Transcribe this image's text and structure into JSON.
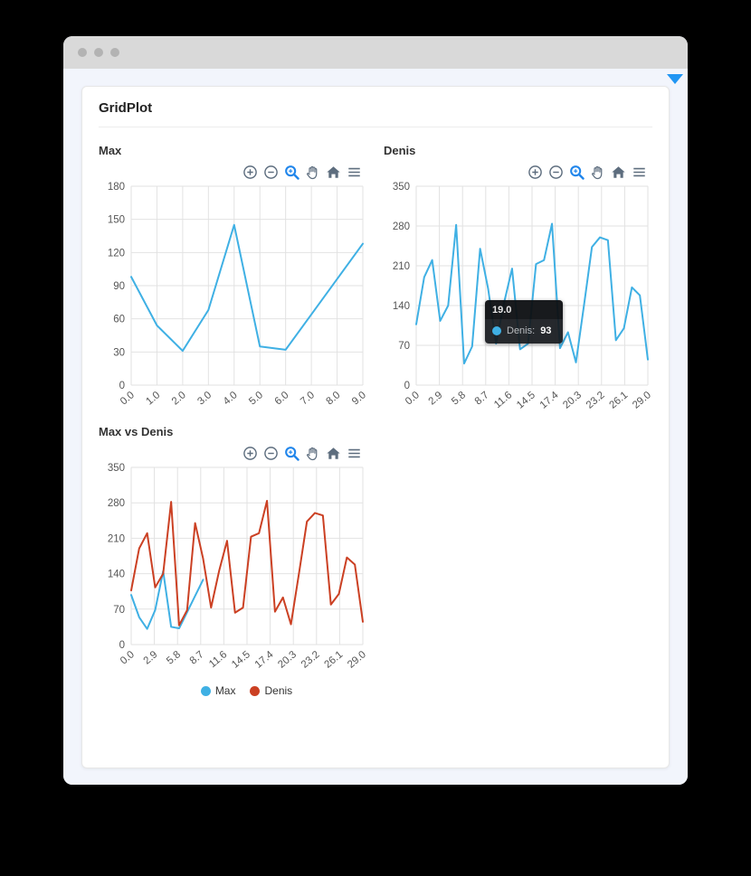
{
  "window": {
    "traffic_dots_count": 3
  },
  "card": {
    "title": "GridPlot"
  },
  "colors": {
    "max_line": "#3fb0e4",
    "denis_line": "#cb4023",
    "toolbar_icon": "#5d6d7e",
    "toolbar_active": "#2186eb",
    "caret": "#2196f3",
    "grid_line": "#e2e2e2",
    "tick_text": "#555555",
    "tooltip_bg": "#16191d"
  },
  "toolbar": {
    "buttons": [
      {
        "name": "zoom-in",
        "active": false
      },
      {
        "name": "zoom-out",
        "active": false
      },
      {
        "name": "box-zoom",
        "active": true
      },
      {
        "name": "pan",
        "active": false
      },
      {
        "name": "reset-home",
        "active": false
      },
      {
        "name": "menu",
        "active": false
      }
    ]
  },
  "tooltip": {
    "header": "19.0",
    "series_label": "Denis:",
    "value": "93"
  },
  "legend": {
    "items": [
      {
        "label": "Max",
        "color": "#3fb0e4"
      },
      {
        "label": "Denis",
        "color": "#cb4023"
      }
    ]
  },
  "chart_data": [
    {
      "type": "line",
      "title": "Max",
      "x": [
        0,
        1,
        2,
        3,
        4,
        5,
        6,
        7,
        8,
        9
      ],
      "values": [
        98,
        54,
        31,
        68,
        145,
        35,
        32,
        64,
        96,
        128
      ],
      "x_tick_labels": [
        "0.0",
        "1.0",
        "2.0",
        "3.0",
        "4.0",
        "5.0",
        "6.0",
        "7.0",
        "8.0",
        "9.0"
      ],
      "x_tick_values": [
        0,
        1,
        2,
        3,
        4,
        5,
        6,
        7,
        8,
        9
      ],
      "y_ticks": [
        0,
        30,
        60,
        90,
        120,
        150,
        180
      ],
      "xlim": [
        0,
        9
      ],
      "ylim": [
        0,
        180
      ],
      "line_color": "#3fb0e4",
      "grid": true,
      "legend_position": "none"
    },
    {
      "type": "line",
      "title": "Denis",
      "x": [
        0,
        1,
        2,
        3,
        4,
        5,
        6,
        7,
        8,
        9,
        10,
        11,
        12,
        13,
        14,
        15,
        16,
        17,
        18,
        19,
        20,
        21,
        22,
        23,
        24,
        25,
        26,
        27,
        28,
        29
      ],
      "values": [
        107,
        190,
        220,
        113,
        140,
        282,
        38,
        68,
        240,
        170,
        73,
        145,
        205,
        63,
        73,
        213,
        220,
        284,
        65,
        93,
        40,
        140,
        243,
        260,
        255,
        79,
        100,
        172,
        158,
        45
      ],
      "x_tick_labels": [
        "0.0",
        "2.9",
        "5.8",
        "8.7",
        "11.6",
        "14.5",
        "17.4",
        "20.3",
        "23.2",
        "26.1",
        "29.0"
      ],
      "x_tick_values": [
        0,
        2.9,
        5.8,
        8.7,
        11.6,
        14.5,
        17.4,
        20.3,
        23.2,
        26.1,
        29
      ],
      "y_ticks": [
        0,
        70,
        140,
        210,
        280,
        350
      ],
      "xlim": [
        0,
        29
      ],
      "ylim": [
        0,
        350
      ],
      "line_color": "#3fb0e4",
      "grid": true,
      "hover": {
        "x": 19,
        "y": 93
      },
      "legend_position": "none"
    },
    {
      "type": "line",
      "title": "Max vs Denis",
      "series": [
        {
          "name": "Max",
          "color": "#3fb0e4",
          "x": [
            0,
            1,
            2,
            3,
            4,
            5,
            6,
            7,
            8,
            9
          ],
          "values": [
            98,
            54,
            31,
            68,
            145,
            35,
            32,
            64,
            96,
            128
          ]
        },
        {
          "name": "Denis",
          "color": "#cb4023",
          "x": [
            0,
            1,
            2,
            3,
            4,
            5,
            6,
            7,
            8,
            9,
            10,
            11,
            12,
            13,
            14,
            15,
            16,
            17,
            18,
            19,
            20,
            21,
            22,
            23,
            24,
            25,
            26,
            27,
            28,
            29
          ],
          "values": [
            107,
            190,
            220,
            113,
            140,
            282,
            38,
            68,
            240,
            170,
            73,
            145,
            205,
            63,
            73,
            213,
            220,
            284,
            65,
            93,
            40,
            140,
            243,
            260,
            255,
            79,
            100,
            172,
            158,
            45
          ]
        }
      ],
      "x_tick_labels": [
        "0.0",
        "2.9",
        "5.8",
        "8.7",
        "11.6",
        "14.5",
        "17.4",
        "20.3",
        "23.2",
        "26.1",
        "29.0"
      ],
      "x_tick_values": [
        0,
        2.9,
        5.8,
        8.7,
        11.6,
        14.5,
        17.4,
        20.3,
        23.2,
        26.1,
        29
      ],
      "y_ticks": [
        0,
        70,
        140,
        210,
        280,
        350
      ],
      "xlim": [
        0,
        29
      ],
      "ylim": [
        0,
        350
      ],
      "grid": true,
      "legend_position": "bottom"
    }
  ]
}
